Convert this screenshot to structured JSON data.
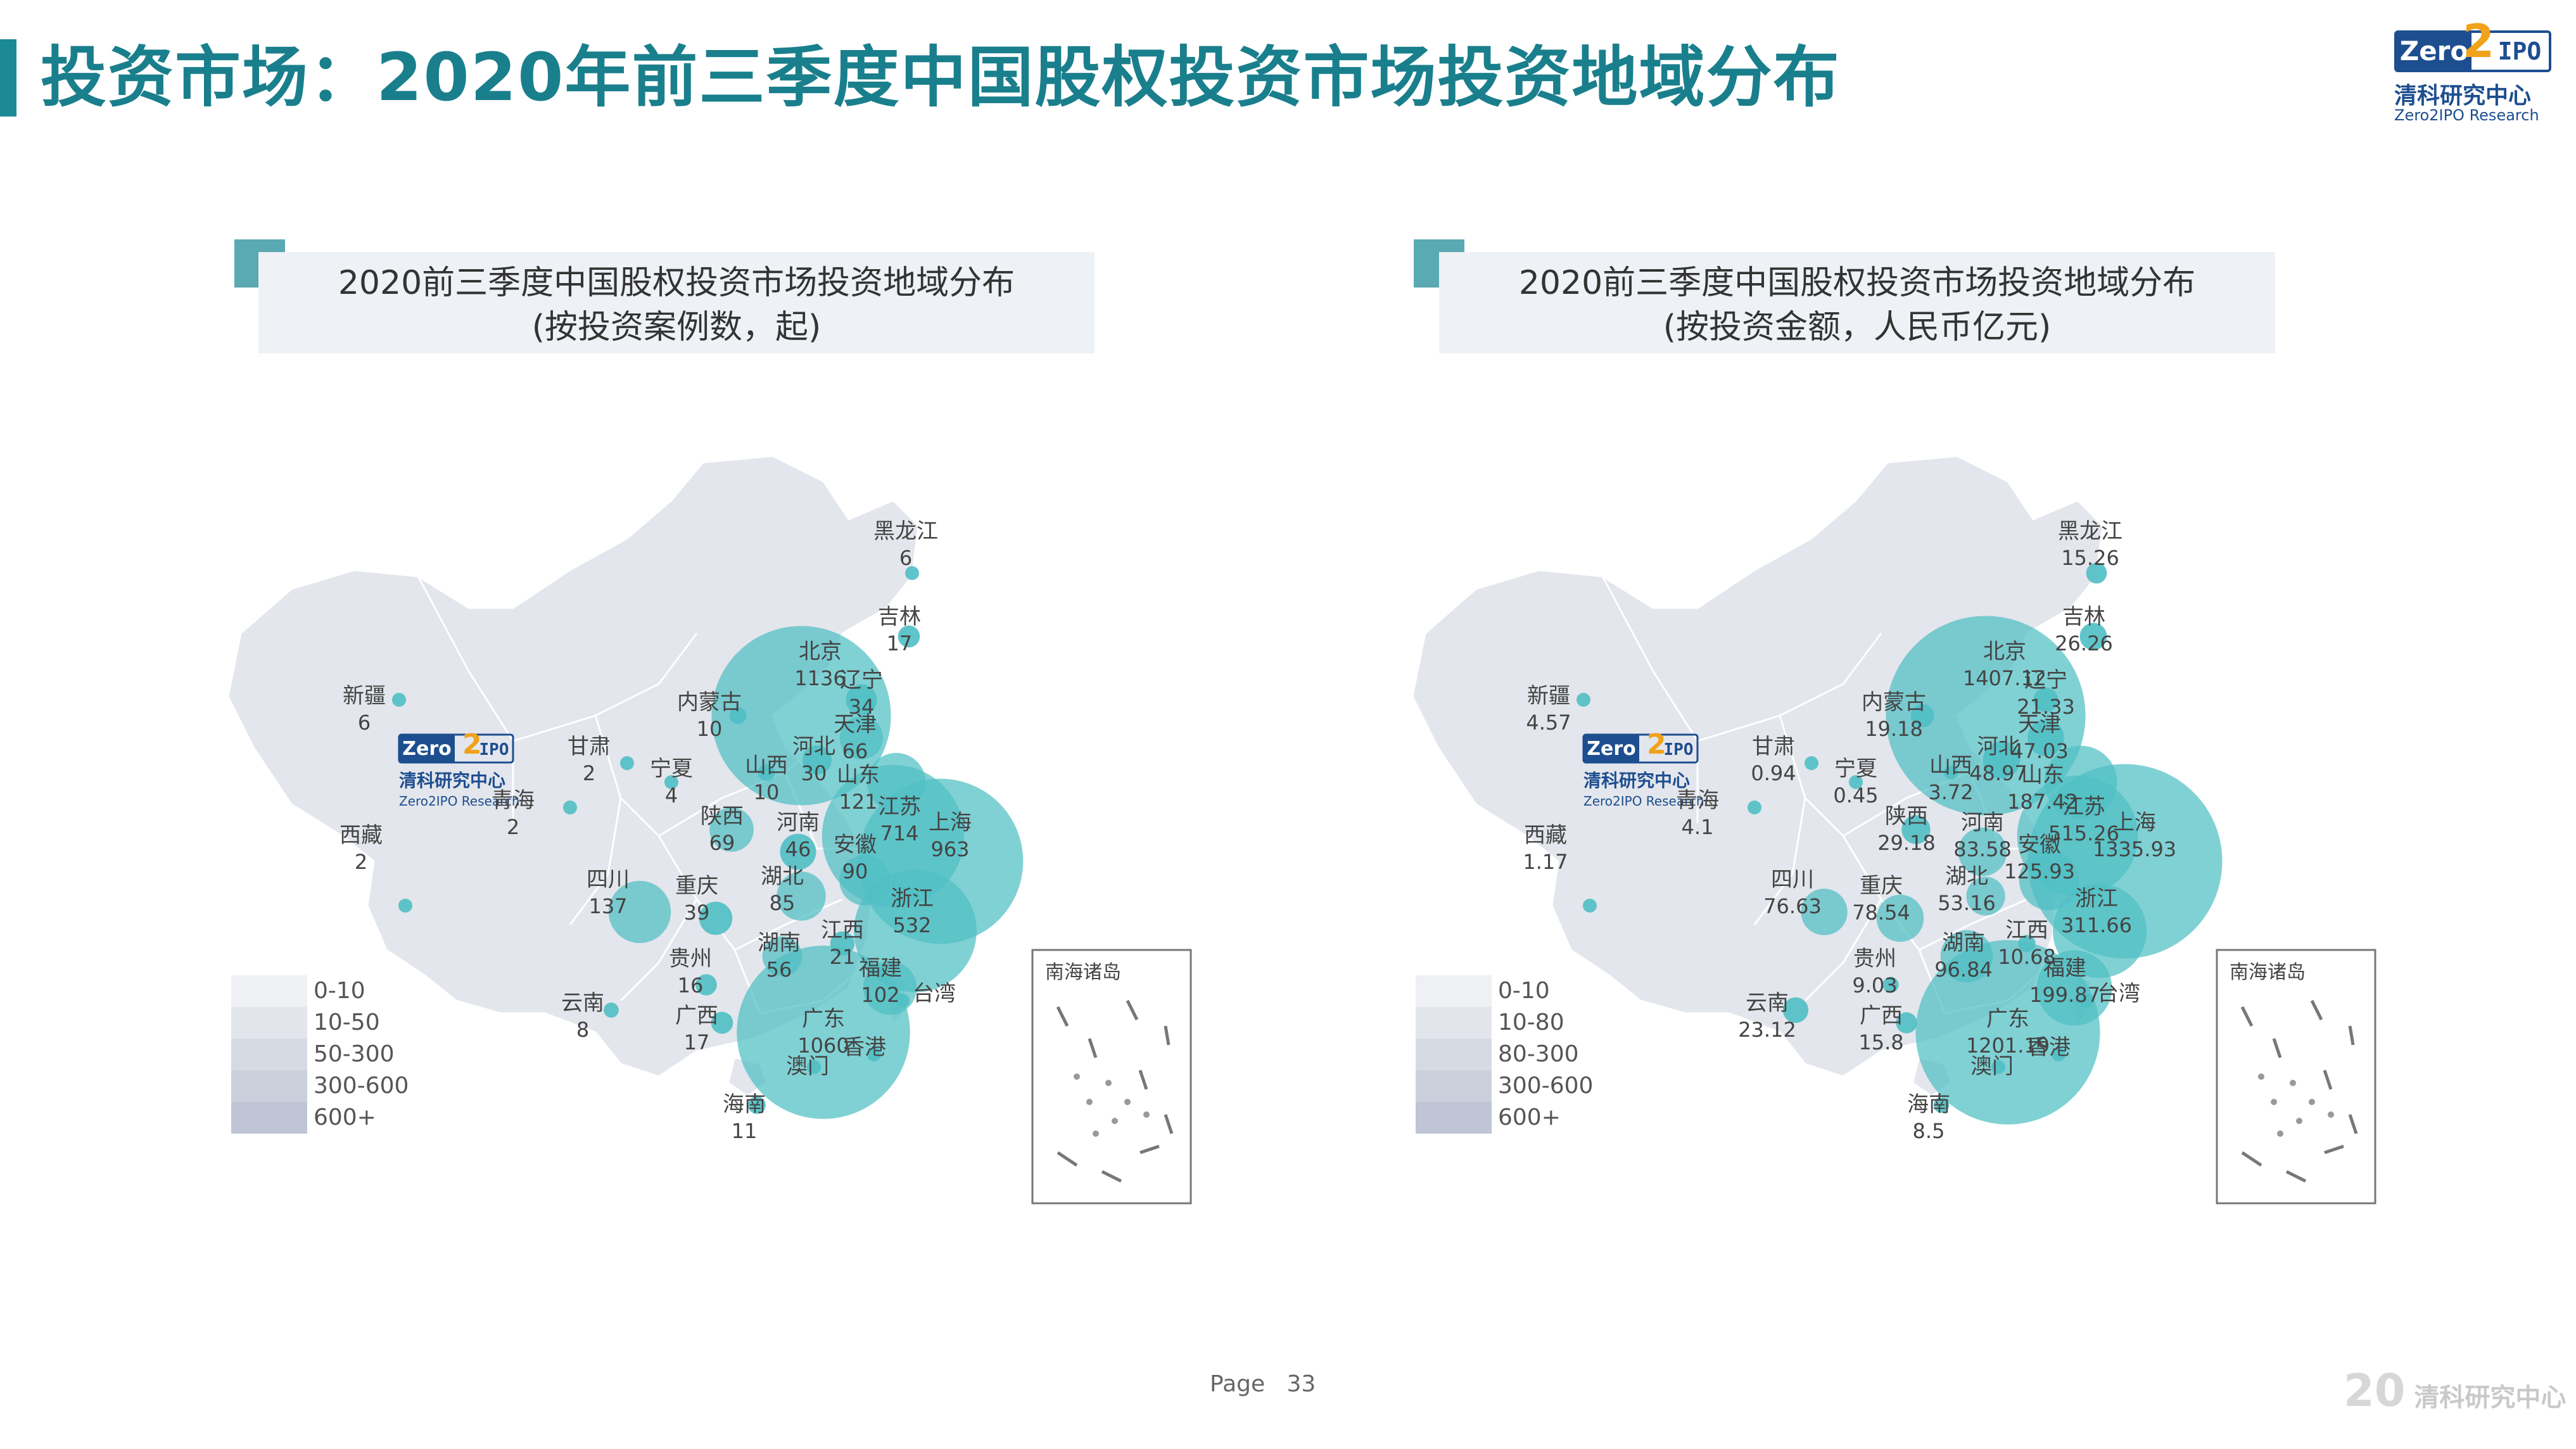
{
  "header": {
    "title": "投资市场：2020年前三季度中国股权投资市场投资地域分布"
  },
  "logo": {
    "zero": "Zero",
    "two": "2",
    "ipo": "IPO",
    "name_cn": "清科研究中心",
    "name_en": "Zero2IPO Research"
  },
  "colors": {
    "accent": "#1a7f8c",
    "bubble": "#4fbfc4",
    "legend": [
      "#eef0f4",
      "#e2e5eb",
      "#d6dae3",
      "#cbd0dc",
      "#bfc5d5"
    ]
  },
  "chart_data": [
    {
      "type": "map-bubble",
      "title": "2020前三季度中国股权投资市场投资地域分布",
      "subtitle": "(按投资案例数，起)",
      "legend": [
        "0-10",
        "10-50",
        "50-300",
        "300-600",
        "600+"
      ],
      "inset_label": "南海诸岛",
      "watermark": {
        "zero": "Zero",
        "two": "2",
        "ipo": "IPO",
        "cn": "清科研究中心",
        "en": "Zero2IPO Research"
      },
      "regions": [
        {
          "name": "黑龙江",
          "value": "6"
        },
        {
          "name": "吉林",
          "value": "17"
        },
        {
          "name": "辽宁",
          "value": "34"
        },
        {
          "name": "北京",
          "value": "1136"
        },
        {
          "name": "天津",
          "value": "66"
        },
        {
          "name": "河北",
          "value": "30"
        },
        {
          "name": "内蒙古",
          "value": "10"
        },
        {
          "name": "新疆",
          "value": "6"
        },
        {
          "name": "甘肃",
          "value": "2"
        },
        {
          "name": "宁夏",
          "value": "4"
        },
        {
          "name": "山西",
          "value": "10"
        },
        {
          "name": "山东",
          "value": "121"
        },
        {
          "name": "青海",
          "value": "2"
        },
        {
          "name": "陕西",
          "value": "69"
        },
        {
          "name": "河南",
          "value": "46"
        },
        {
          "name": "江苏",
          "value": "714"
        },
        {
          "name": "上海",
          "value": "963"
        },
        {
          "name": "安徽",
          "value": "90"
        },
        {
          "name": "西藏",
          "value": "2"
        },
        {
          "name": "湖北",
          "value": "85"
        },
        {
          "name": "四川",
          "value": "137"
        },
        {
          "name": "重庆",
          "value": "39"
        },
        {
          "name": "浙江",
          "value": "532"
        },
        {
          "name": "江西",
          "value": "21"
        },
        {
          "name": "湖南",
          "value": "56"
        },
        {
          "name": "贵州",
          "value": "16"
        },
        {
          "name": "福建",
          "value": "102"
        },
        {
          "name": "台湾",
          "value": ""
        },
        {
          "name": "云南",
          "value": "8"
        },
        {
          "name": "广西",
          "value": "17"
        },
        {
          "name": "广东",
          "value": "1060"
        },
        {
          "name": "香港",
          "value": ""
        },
        {
          "name": "澳门",
          "value": ""
        },
        {
          "name": "海南",
          "value": "11"
        }
      ]
    },
    {
      "type": "map-bubble",
      "title": "2020前三季度中国股权投资市场投资地域分布",
      "subtitle": "(按投资金额，人民币亿元)",
      "legend": [
        "0-10",
        "10-80",
        "80-300",
        "300-600",
        "600+"
      ],
      "inset_label": "南海诸岛",
      "watermark": {
        "zero": "Zero",
        "two": "2",
        "ipo": "IPO",
        "cn": "清科研究中心",
        "en": "Zero2IPO Research"
      },
      "regions": [
        {
          "name": "黑龙江",
          "value": "15.26"
        },
        {
          "name": "吉林",
          "value": "26.26"
        },
        {
          "name": "辽宁",
          "value": "21.33"
        },
        {
          "name": "北京",
          "value": "1407.12"
        },
        {
          "name": "天津",
          "value": "47.03"
        },
        {
          "name": "河北",
          "value": "48.97"
        },
        {
          "name": "内蒙古",
          "value": "19.18"
        },
        {
          "name": "新疆",
          "value": "4.57"
        },
        {
          "name": "甘肃",
          "value": "0.94"
        },
        {
          "name": "宁夏",
          "value": "0.45"
        },
        {
          "name": "山西",
          "value": "3.72"
        },
        {
          "name": "山东",
          "value": "187.42"
        },
        {
          "name": "青海",
          "value": "4.1"
        },
        {
          "name": "陕西",
          "value": "29.18"
        },
        {
          "name": "河南",
          "value": "83.58"
        },
        {
          "name": "江苏",
          "value": "515.26"
        },
        {
          "name": "上海",
          "value": "1335.93"
        },
        {
          "name": "安徽",
          "value": "125.93"
        },
        {
          "name": "西藏",
          "value": "1.17"
        },
        {
          "name": "湖北",
          "value": "53.16"
        },
        {
          "name": "四川",
          "value": "76.63"
        },
        {
          "name": "重庆",
          "value": "78.54"
        },
        {
          "name": "浙江",
          "value": "311.66"
        },
        {
          "name": "江西",
          "value": "10.68"
        },
        {
          "name": "湖南",
          "value": "96.84"
        },
        {
          "name": "贵州",
          "value": "9.03"
        },
        {
          "name": "福建",
          "value": "199.87"
        },
        {
          "name": "台湾",
          "value": ""
        },
        {
          "name": "云南",
          "value": "23.12"
        },
        {
          "name": "广西",
          "value": "15.8"
        },
        {
          "name": "广东",
          "value": "1201.19"
        },
        {
          "name": "香港",
          "value": ""
        },
        {
          "name": "澳门",
          "value": ""
        },
        {
          "name": "海南",
          "value": "8.5"
        }
      ]
    }
  ],
  "footer": {
    "page_label": "Page",
    "page_number": "33",
    "logo_mark": "20",
    "logo_text": "清科研究中心"
  }
}
